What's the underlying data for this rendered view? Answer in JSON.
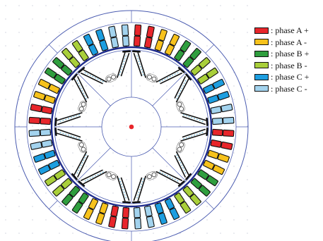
{
  "legend": {
    "items": [
      {
        "label": ": phase A +",
        "color": "#e8262b"
      },
      {
        "label": ": phase A -",
        "color": "#f7c21c"
      },
      {
        "label": ": phase B +",
        "color": "#2f9e3e"
      },
      {
        "label": ": phase B -",
        "color": "#a9cf3a"
      },
      {
        "label": ": phase C +",
        "color": "#1d9ee0"
      },
      {
        "label": ": phase C -",
        "color": "#a3d3ee"
      }
    ]
  },
  "colors": {
    "outline": "#4a5bb0",
    "inner_ring": "#1c2a8c",
    "center_dot": "#e8262b",
    "grid_dot": "#9aa0b8"
  },
  "stator": {
    "slots": 48,
    "phase_sequence": [
      0,
      0,
      1,
      1,
      2,
      2,
      3,
      3,
      4,
      4,
      5,
      5
    ]
  }
}
